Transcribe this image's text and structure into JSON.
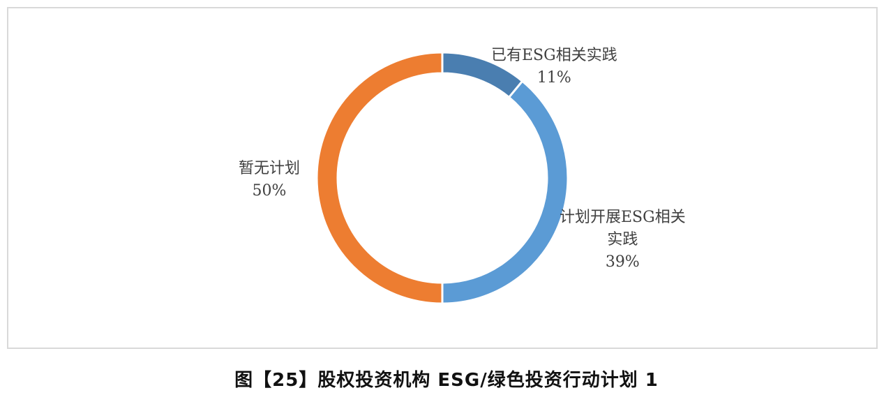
{
  "caption": "图【25】股权投资机构 ESG/绿色投资行动计划 1",
  "chart_data": {
    "type": "pie",
    "donut": true,
    "slices": [
      {
        "label": "已有ESG相关实践",
        "label_lines": [
          "已有ESG相关实践"
        ],
        "value": 11,
        "value_text": "11%",
        "color": "#4a7eb0"
      },
      {
        "label": "计划开展ESG相关实践",
        "label_lines": [
          "计划开展ESG相关",
          "实践"
        ],
        "value": 39,
        "value_text": "39%",
        "color": "#5b9bd5"
      },
      {
        "label": "暂无计划",
        "label_lines": [
          "暂无计划"
        ],
        "value": 50,
        "value_text": "50%",
        "color": "#ed7d31"
      }
    ],
    "start_angle_deg": 0,
    "direction": "clockwise",
    "legend": "none"
  }
}
